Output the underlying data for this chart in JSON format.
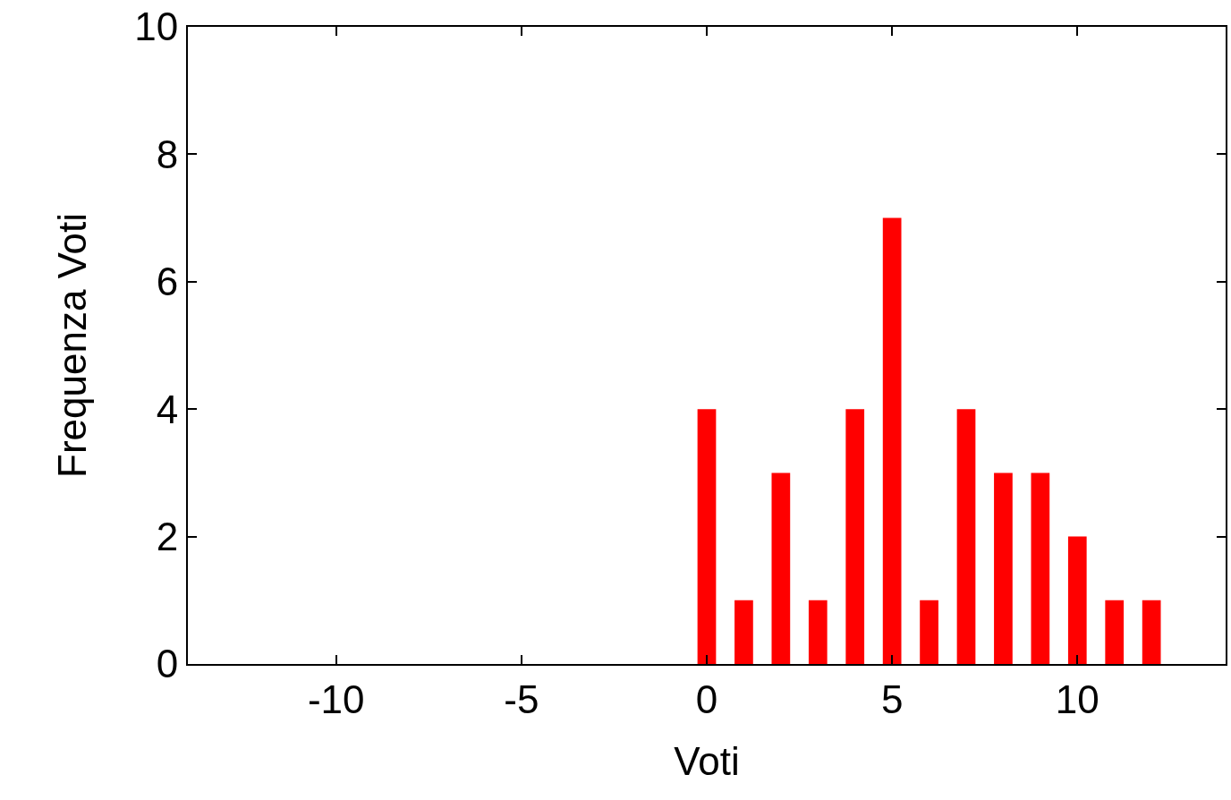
{
  "chart_data": {
    "type": "bar",
    "xlabel": "Voti",
    "ylabel": "Frequenza Voti",
    "x": [
      0,
      1,
      2,
      3,
      4,
      5,
      6,
      7,
      8,
      9,
      10,
      11,
      12
    ],
    "values": [
      4,
      1,
      3,
      1,
      4,
      7,
      1,
      4,
      3,
      3,
      2,
      1,
      1
    ],
    "color": "#ff0000",
    "xlim": [
      -14,
      14
    ],
    "xticks": [
      -10,
      -5,
      0,
      5,
      10
    ],
    "ylim": [
      0,
      10
    ],
    "yticks": [
      0,
      2,
      4,
      6,
      8,
      10
    ]
  }
}
